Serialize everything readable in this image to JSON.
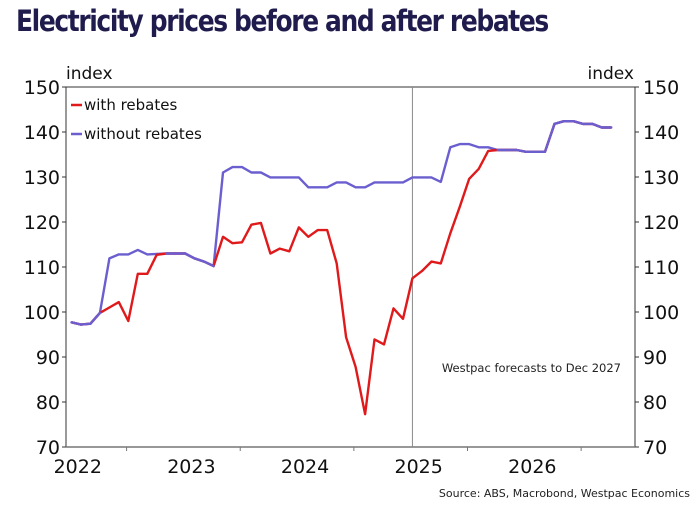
{
  "title": "Electricity prices before and after rebates",
  "source": "Source: ABS, Macrobond, Westpac Economics",
  "chart_data": {
    "type": "line",
    "title": "Electricity prices before and after rebates",
    "xlabel": "",
    "ylabel_left": "index",
    "ylabel_right": "index",
    "ylim": [
      70,
      150
    ],
    "yticks": [
      70,
      80,
      90,
      100,
      110,
      120,
      130,
      140,
      150
    ],
    "x_tick_labels": [
      "2022",
      "2023",
      "2024",
      "2025",
      "2026"
    ],
    "x_start": "2022-01",
    "x_frequency": "monthly",
    "forecast_marker": "2025-01",
    "annotation": "Westpac forecasts to Dec 2027",
    "legend_position": "top-left",
    "grid": false,
    "colors": {
      "with_rebates": "#e0191b",
      "without_rebates": "#6b5fcf",
      "title": "#1f1c4d"
    },
    "series": [
      {
        "name": "with rebates",
        "color": "#e0191b",
        "values": [
          97.7,
          97.2,
          97.4,
          99.8,
          101.0,
          102.2,
          98.0,
          108.5,
          108.5,
          112.7,
          113.0,
          113.0,
          113.0,
          111.9,
          111.2,
          110.2,
          116.7,
          115.3,
          115.5,
          119.4,
          119.8,
          113.0,
          114.1,
          113.5,
          118.8,
          116.7,
          118.2,
          118.2,
          110.8,
          94.4,
          87.8,
          77.3,
          93.9,
          92.8,
          100.8,
          98.5,
          107.5,
          109.1,
          111.2,
          110.8,
          117.5,
          123.4,
          129.6,
          131.8,
          135.8,
          136.0,
          136.0,
          136.0,
          135.6,
          135.6,
          135.6,
          141.8,
          142.4,
          142.4,
          141.8,
          141.8,
          141.0,
          141.0
        ]
      },
      {
        "name": "without rebates",
        "color": "#6b5fcf",
        "values": [
          97.7,
          97.2,
          97.4,
          99.8,
          111.9,
          112.8,
          112.8,
          113.8,
          112.8,
          112.9,
          113.0,
          113.0,
          113.0,
          111.9,
          111.2,
          110.2,
          131.0,
          132.2,
          132.2,
          131.0,
          131.0,
          129.9,
          129.9,
          129.9,
          129.9,
          127.7,
          127.7,
          127.7,
          128.8,
          128.8,
          127.7,
          127.7,
          128.8,
          128.8,
          128.8,
          128.8,
          129.9,
          129.9,
          129.9,
          128.9,
          136.6,
          137.3,
          137.3,
          136.6,
          136.6,
          136.0,
          136.0,
          136.0,
          135.6,
          135.6,
          135.6,
          141.8,
          142.4,
          142.4,
          141.8,
          141.8,
          141.0,
          141.0
        ]
      }
    ]
  }
}
